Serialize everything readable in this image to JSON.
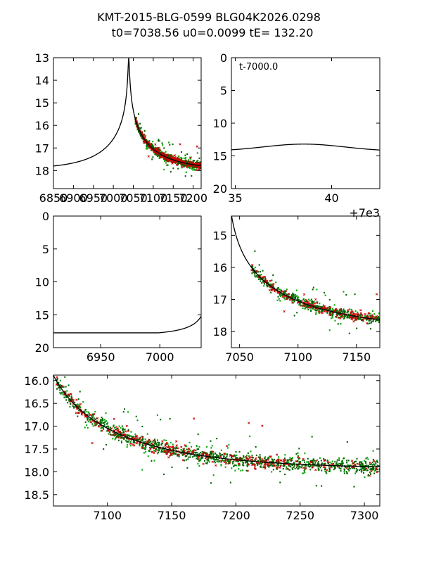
{
  "title": {
    "line1": "KMT-2015-BLG-0599 BLG04K2026.0298",
    "line2": "t0=7038.56 u0=0.0099 tE= 132.20"
  },
  "model": {
    "t0": 7038.56,
    "u0": 0.0099,
    "tE": 132.2,
    "baseline_mag": 17.95,
    "peak_mag": 13.0
  },
  "colors": {
    "model": "#000000",
    "series_dark_green": "#006400",
    "series_green": "#00aa00",
    "series_red": "#cc0000"
  },
  "chart_data": [
    {
      "id": "panel-1",
      "type": "scatter",
      "xlim": [
        6850,
        7220
      ],
      "ylim": [
        18.8,
        13
      ],
      "invert_y": true,
      "x_tick_labels": [
        "6850",
        "6900",
        "6950",
        "7000",
        "7050",
        "7100",
        "7150",
        "7200"
      ],
      "x_tick_values": [
        6850,
        6900,
        6950,
        7000,
        7050,
        7100,
        7150,
        7200
      ],
      "y_tick_labels": [
        "13",
        "14",
        "15",
        "16",
        "17",
        "18"
      ],
      "y_tick_values": [
        13,
        14,
        15,
        16,
        17,
        18
      ],
      "data_range": [
        7055,
        7220
      ],
      "series": [
        "KMT dark green",
        "KMT green",
        "KMT red",
        "model"
      ]
    },
    {
      "id": "panel-2",
      "type": "line",
      "xlim": [
        34.8,
        42.5
      ],
      "ylim": [
        20,
        0
      ],
      "invert_y": true,
      "x_tick_labels": [
        "35",
        "40"
      ],
      "x_tick_values": [
        35,
        40
      ],
      "y_tick_labels": [
        "0",
        "5",
        "10",
        "15",
        "20"
      ],
      "y_tick_values": [
        0,
        5,
        10,
        15,
        20
      ],
      "annotation": "t-7000.0",
      "offset_label": "+7e3",
      "series": [
        "model"
      ]
    },
    {
      "id": "panel-3",
      "type": "line",
      "xlim": [
        6910,
        7035
      ],
      "ylim": [
        20,
        0
      ],
      "invert_y": true,
      "x_tick_labels": [
        "6950",
        "7000"
      ],
      "x_tick_values": [
        6950,
        7000
      ],
      "y_tick_labels": [
        "0",
        "5",
        "10",
        "15",
        "20"
      ],
      "y_tick_values": [
        0,
        5,
        10,
        15,
        20
      ],
      "series": [
        "model"
      ]
    },
    {
      "id": "panel-4",
      "type": "scatter",
      "xlim": [
        7043,
        7170
      ],
      "ylim": [
        18.5,
        14.4
      ],
      "invert_y": true,
      "x_tick_labels": [
        "7050",
        "7100",
        "7150"
      ],
      "x_tick_values": [
        7050,
        7100,
        7150
      ],
      "y_tick_labels": [
        "15",
        "16",
        "17",
        "18"
      ],
      "y_tick_values": [
        15,
        16,
        17,
        18
      ],
      "data_range": [
        7060,
        7170
      ],
      "series": [
        "KMT dark green",
        "KMT green",
        "KMT red",
        "model"
      ]
    },
    {
      "id": "panel-5",
      "type": "scatter",
      "xlim": [
        7058,
        7312
      ],
      "ylim": [
        18.75,
        15.88
      ],
      "invert_y": true,
      "x_tick_labels": [
        "7100",
        "7150",
        "7200",
        "7250",
        "7300"
      ],
      "x_tick_values": [
        7100,
        7150,
        7200,
        7250,
        7300
      ],
      "y_tick_labels": [
        "16.0",
        "16.5",
        "17.0",
        "17.5",
        "18.0",
        "18.5"
      ],
      "y_tick_values": [
        16.0,
        16.5,
        17.0,
        17.5,
        18.0,
        18.5
      ],
      "data_range": [
        7060,
        7312
      ],
      "series": [
        "KMT dark green",
        "KMT green",
        "KMT red",
        "model"
      ]
    }
  ]
}
